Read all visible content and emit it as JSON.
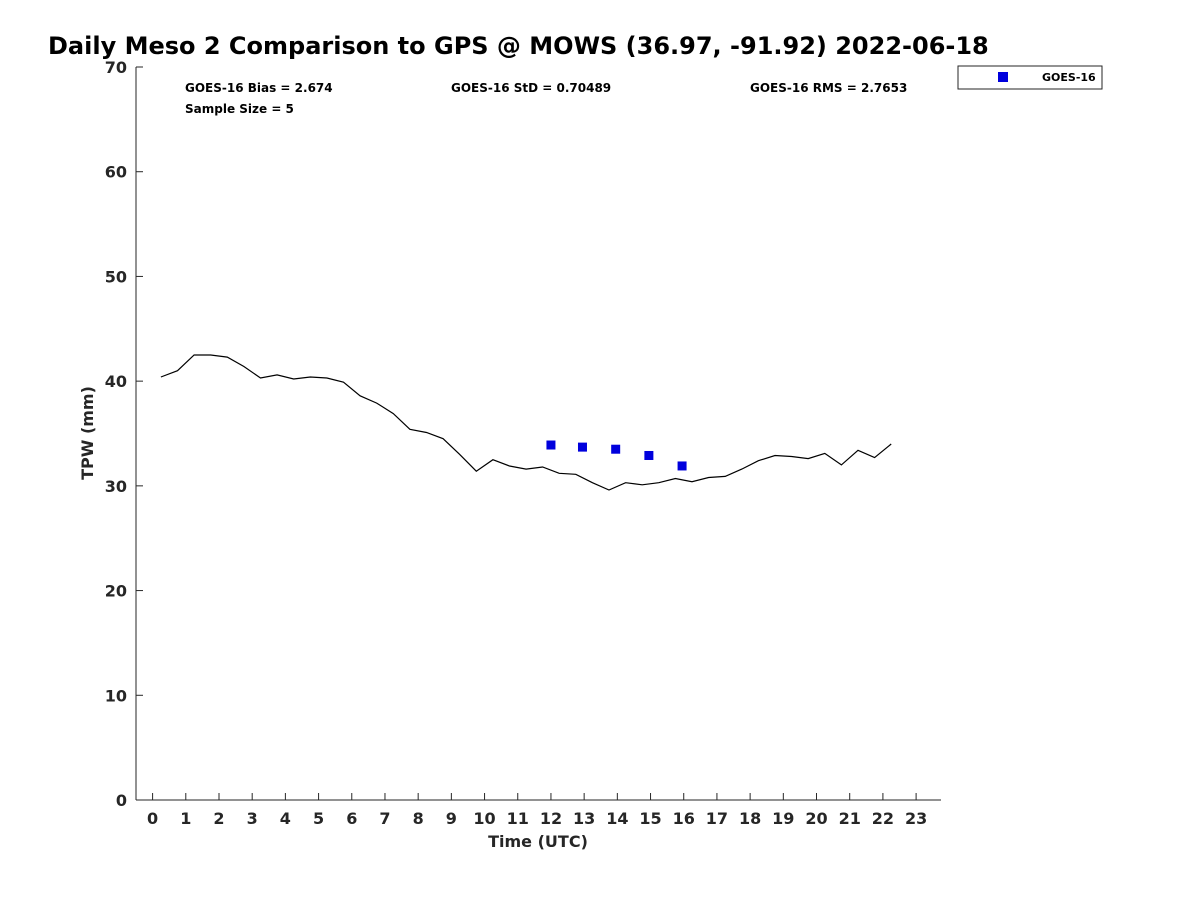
{
  "chart_data": {
    "type": "line",
    "title": "Daily Meso 2 Comparison to GPS @ MOWS (36.97, -91.92) 2022-06-18",
    "xlabel": "Time (UTC)",
    "ylabel": "TPW (mm)",
    "xlim": [
      -0.5,
      23.75
    ],
    "ylim": [
      0,
      70
    ],
    "x_ticks": [
      "0",
      "1",
      "2",
      "3",
      "4",
      "5",
      "6",
      "7",
      "8",
      "9",
      "10",
      "11",
      "12",
      "13",
      "14",
      "15",
      "16",
      "17",
      "18",
      "19",
      "20",
      "21",
      "22",
      "23"
    ],
    "y_ticks": [
      "0",
      "10",
      "20",
      "30",
      "40",
      "50",
      "60",
      "70"
    ],
    "grid": false,
    "legend_position": "top-right, outside plot",
    "stats": {
      "bias": "GOES-16 Bias = 2.674",
      "std": "GOES-16 StD = 0.70489",
      "rms": "GOES-16 RMS = 2.7653",
      "sample": "Sample Size = 5"
    },
    "series": [
      {
        "style": "line",
        "color": "#000000",
        "x": [
          0.25,
          0.75,
          1.25,
          1.75,
          2.25,
          2.75,
          3.25,
          3.75,
          4.25,
          4.75,
          5.25,
          5.75,
          6.25,
          6.75,
          7.25,
          7.75,
          8.25,
          8.75,
          9.25,
          9.75,
          10.25,
          10.75,
          11.25,
          11.75,
          12.25,
          12.75,
          13.25,
          13.75,
          14.25,
          14.75,
          15.25,
          15.75,
          16.25,
          16.75,
          17.25,
          17.75,
          18.25,
          18.75,
          19.25,
          19.75,
          20.25,
          20.75,
          21.25,
          21.75,
          22.25
        ],
        "y": [
          40.4,
          41.0,
          42.5,
          42.5,
          42.3,
          41.4,
          40.3,
          40.6,
          40.2,
          40.4,
          40.3,
          39.9,
          38.6,
          37.9,
          36.9,
          35.4,
          35.1,
          34.5,
          33.0,
          31.4,
          32.5,
          31.9,
          31.6,
          31.8,
          31.2,
          31.1,
          30.3,
          29.6,
          30.3,
          30.1,
          30.3,
          30.7,
          30.4,
          30.8,
          30.9,
          31.6,
          32.4,
          32.9,
          32.8,
          32.6,
          33.1,
          32.0,
          33.4,
          32.7,
          34.0
        ]
      },
      {
        "name": "GOES-16",
        "style": "marker",
        "marker": "square",
        "color": "#0000dd",
        "x": [
          12.0,
          12.95,
          13.95,
          14.95,
          15.95
        ],
        "y": [
          33.9,
          33.7,
          33.5,
          32.9,
          31.9
        ]
      }
    ]
  }
}
